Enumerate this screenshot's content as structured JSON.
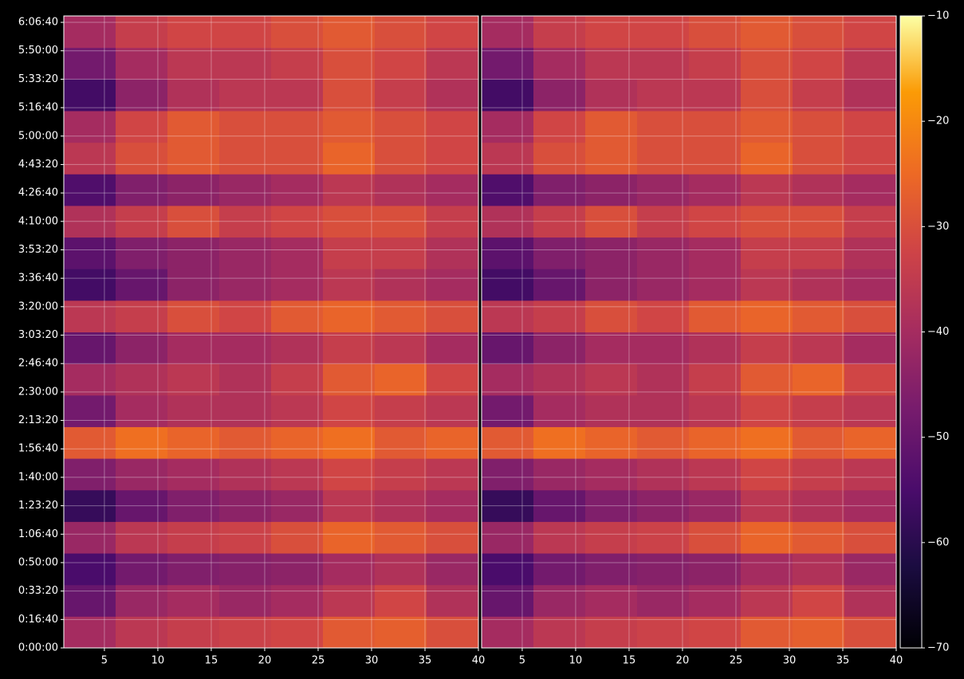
{
  "chart_data": {
    "type": "heatmap",
    "colormap": "inferno",
    "ylim": [
      0,
      22225
    ],
    "yticks": [
      {
        "value": 0,
        "label": "0:00:00"
      },
      {
        "value": 1000,
        "label": "0:16:40"
      },
      {
        "value": 2000,
        "label": "0:33:20"
      },
      {
        "value": 3000,
        "label": "0:50:00"
      },
      {
        "value": 4000,
        "label": "1:06:40"
      },
      {
        "value": 5000,
        "label": "1:23:20"
      },
      {
        "value": 6000,
        "label": "1:40:00"
      },
      {
        "value": 7000,
        "label": "1:56:40"
      },
      {
        "value": 8000,
        "label": "2:13:20"
      },
      {
        "value": 9000,
        "label": "2:30:00"
      },
      {
        "value": 10000,
        "label": "2:46:40"
      },
      {
        "value": 11000,
        "label": "3:03:20"
      },
      {
        "value": 12000,
        "label": "3:20:00"
      },
      {
        "value": 13000,
        "label": "3:36:40"
      },
      {
        "value": 14000,
        "label": "3:53:20"
      },
      {
        "value": 15000,
        "label": "4:10:00"
      },
      {
        "value": 16000,
        "label": "4:26:40"
      },
      {
        "value": 17000,
        "label": "4:43:20"
      },
      {
        "value": 18000,
        "label": "5:00:00"
      },
      {
        "value": 19000,
        "label": "5:16:40"
      },
      {
        "value": 20000,
        "label": "5:33:20"
      },
      {
        "value": 21000,
        "label": "5:50:00"
      },
      {
        "value": 22000,
        "label": "6:06:40"
      }
    ],
    "colorbar": {
      "clim": [
        -70,
        -10
      ],
      "ticks": [
        {
          "value": -10,
          "label": "−10"
        },
        {
          "value": -20,
          "label": "−20"
        },
        {
          "value": -30,
          "label": "−30"
        },
        {
          "value": -40,
          "label": "−40"
        },
        {
          "value": -50,
          "label": "−50"
        },
        {
          "value": -60,
          "label": "−60"
        },
        {
          "value": -70,
          "label": "−70"
        }
      ]
    },
    "panels": [
      {
        "xlim": [
          1.2,
          40
        ],
        "xticks": [
          5,
          10,
          15,
          20,
          25,
          30,
          35,
          40
        ],
        "z": [
          [
            -40,
            -36,
            -34,
            -33,
            -32,
            -28,
            -27,
            -30
          ],
          [
            -50,
            -42,
            -40,
            -42,
            -40,
            -36,
            -32,
            -38
          ],
          [
            -55,
            -48,
            -46,
            -45,
            -44,
            -40,
            -38,
            -42
          ],
          [
            -42,
            -36,
            -34,
            -33,
            -30,
            -26,
            -28,
            -30
          ],
          [
            -58,
            -50,
            -46,
            -44,
            -42,
            -36,
            -38,
            -40
          ],
          [
            -46,
            -42,
            -40,
            -38,
            -36,
            -32,
            -34,
            -36
          ],
          [
            -28,
            -24,
            -26,
            -28,
            -26,
            -24,
            -28,
            -26
          ],
          [
            -48,
            -40,
            -38,
            -38,
            -36,
            -32,
            -34,
            -36
          ],
          [
            -40,
            -38,
            -36,
            -38,
            -34,
            -28,
            -26,
            -32
          ],
          [
            -50,
            -44,
            -40,
            -40,
            -38,
            -34,
            -36,
            -40
          ],
          [
            -36,
            -34,
            -30,
            -32,
            -28,
            -26,
            -28,
            -30
          ],
          [
            -56,
            -50,
            -44,
            -42,
            -40,
            -36,
            -38,
            -40
          ],
          [
            -52,
            -46,
            -44,
            -42,
            -40,
            -34,
            -34,
            -38
          ],
          [
            -38,
            -34,
            -30,
            -34,
            -32,
            -30,
            -30,
            -34
          ],
          [
            -54,
            -46,
            -44,
            -42,
            -40,
            -36,
            -38,
            -40
          ],
          [
            -36,
            -30,
            -28,
            -30,
            -30,
            -26,
            -30,
            -32
          ],
          [
            -40,
            -32,
            -28,
            -30,
            -30,
            -28,
            -30,
            -32
          ],
          [
            -56,
            -44,
            -38,
            -36,
            -36,
            -30,
            -34,
            -38
          ],
          [
            -48,
            -40,
            -36,
            -36,
            -34,
            -30,
            -32,
            -36
          ],
          [
            -40,
            -34,
            -32,
            -32,
            -30,
            -28,
            -30,
            -32
          ]
        ]
      },
      {
        "xlim": [
          1.2,
          40
        ],
        "xticks": [
          5,
          10,
          15,
          20,
          25,
          30,
          35,
          40
        ],
        "z": [
          [
            -40,
            -36,
            -34,
            -33,
            -32,
            -28,
            -27,
            -30
          ],
          [
            -50,
            -42,
            -40,
            -42,
            -40,
            -36,
            -32,
            -38
          ],
          [
            -55,
            -48,
            -46,
            -45,
            -44,
            -40,
            -38,
            -42
          ],
          [
            -42,
            -36,
            -34,
            -33,
            -30,
            -26,
            -28,
            -30
          ],
          [
            -58,
            -50,
            -46,
            -44,
            -42,
            -36,
            -38,
            -40
          ],
          [
            -46,
            -42,
            -40,
            -38,
            -36,
            -32,
            -34,
            -36
          ],
          [
            -28,
            -24,
            -26,
            -28,
            -26,
            -24,
            -28,
            -26
          ],
          [
            -48,
            -40,
            -38,
            -38,
            -36,
            -32,
            -34,
            -36
          ],
          [
            -40,
            -38,
            -36,
            -38,
            -34,
            -28,
            -26,
            -32
          ],
          [
            -50,
            -44,
            -40,
            -40,
            -38,
            -34,
            -36,
            -40
          ],
          [
            -36,
            -34,
            -30,
            -32,
            -28,
            -26,
            -28,
            -30
          ],
          [
            -56,
            -50,
            -44,
            -42,
            -40,
            -36,
            -38,
            -40
          ],
          [
            -52,
            -46,
            -44,
            -42,
            -40,
            -34,
            -34,
            -38
          ],
          [
            -38,
            -34,
            -30,
            -34,
            -32,
            -30,
            -30,
            -34
          ],
          [
            -54,
            -46,
            -44,
            -42,
            -40,
            -36,
            -38,
            -40
          ],
          [
            -36,
            -30,
            -28,
            -30,
            -30,
            -26,
            -30,
            -32
          ],
          [
            -40,
            -32,
            -28,
            -30,
            -30,
            -28,
            -30,
            -32
          ],
          [
            -56,
            -44,
            -38,
            -36,
            -36,
            -30,
            -34,
            -38
          ],
          [
            -48,
            -40,
            -36,
            -36,
            -34,
            -30,
            -32,
            -36
          ],
          [
            -40,
            -34,
            -32,
            -32,
            -30,
            -28,
            -30,
            -32
          ]
        ]
      }
    ]
  }
}
